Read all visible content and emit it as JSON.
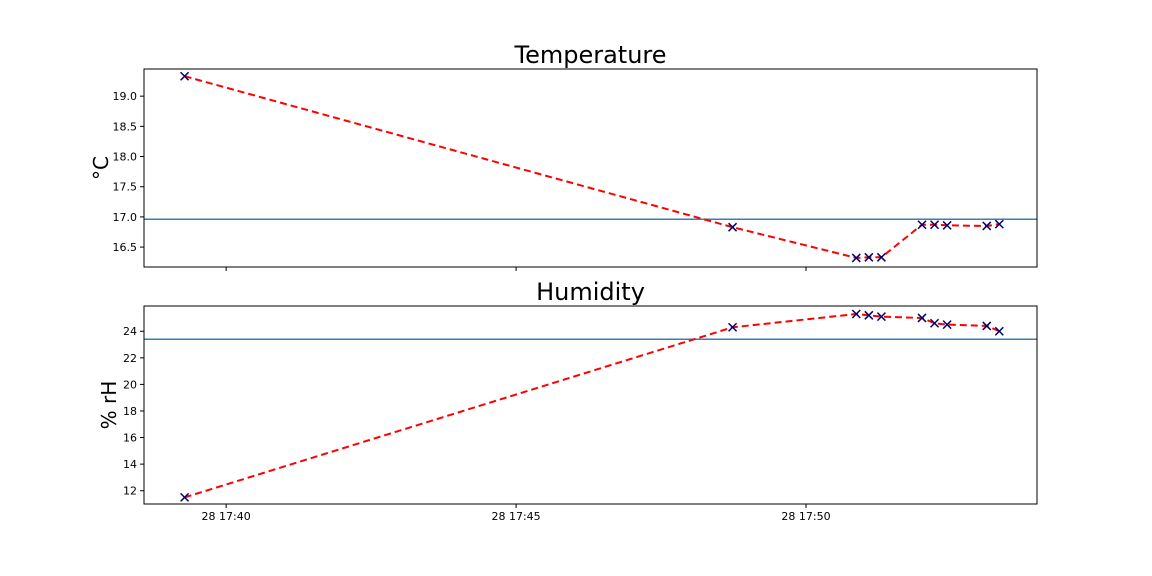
{
  "chart_data": [
    {
      "type": "line",
      "title": "Temperature",
      "xlabel": "",
      "ylabel": "°C",
      "x_tick_labels": [],
      "y_ticks": [
        16.5,
        17.0,
        17.5,
        18.0,
        18.5,
        19.0
      ],
      "y_tick_labels": [
        "16.5",
        "17.0",
        "17.5",
        "18.0",
        "18.5",
        "19.0"
      ],
      "ylim": [
        16.17,
        19.45
      ],
      "xlim": [
        "28 17:38:35",
        "28 17:53:59"
      ],
      "grid": false,
      "x": [
        "28 17:39:17",
        "28 17:48:44",
        "28 17:50:52",
        "28 17:51:05",
        "28 17:51:18",
        "28 17:52:00",
        "28 17:52:13",
        "28 17:52:26",
        "28 17:53:07",
        "28 17:53:20"
      ],
      "series": [
        {
          "values": [
            19.33,
            16.83,
            16.32,
            16.33,
            16.33,
            16.87,
            16.87,
            16.86,
            16.85,
            16.88
          ],
          "line_color": "#ff0000",
          "marker_color": "#00006e"
        }
      ],
      "hline": {
        "value": 16.96,
        "color": "#3a7fae"
      }
    },
    {
      "type": "line",
      "title": "Humidity",
      "xlabel": "",
      "ylabel": "% rH",
      "x_tick_labels": [
        "28 17:40",
        "28 17:45",
        "28 17:50"
      ],
      "x_ticks": [
        "28 17:40:00",
        "28 17:45:00",
        "28 17:50:00"
      ],
      "y_ticks": [
        12,
        14,
        16,
        18,
        20,
        22,
        24
      ],
      "y_tick_labels": [
        "12",
        "14",
        "16",
        "18",
        "20",
        "22",
        "24"
      ],
      "ylim": [
        11.0,
        25.9
      ],
      "xlim": [
        "28 17:38:35",
        "28 17:53:59"
      ],
      "grid": false,
      "x": [
        "28 17:39:17",
        "28 17:48:44",
        "28 17:50:52",
        "28 17:51:05",
        "28 17:51:18",
        "28 17:52:00",
        "28 17:52:13",
        "28 17:52:26",
        "28 17:53:07",
        "28 17:53:20"
      ],
      "series": [
        {
          "values": [
            11.5,
            24.3,
            25.3,
            25.2,
            25.1,
            25.0,
            24.6,
            24.5,
            24.4,
            24.0
          ],
          "line_color": "#ff0000",
          "marker_color": "#00006e"
        }
      ],
      "hline": {
        "value": 23.4,
        "color": "#3a7fae"
      }
    }
  ]
}
